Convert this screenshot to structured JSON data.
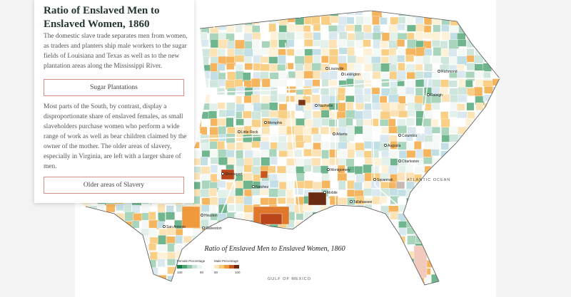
{
  "panel": {
    "title": "Ratio of Enslaved Men to Enslaved Women, 1860",
    "paragraph_1": "The domestic slave trade separates men from women, as traders and planters ship male workers to the sugar fields of Louisiana and Texas as well as to the new plantation areas along the Mississippi River.",
    "button_1": "Sugar Plantations",
    "paragraph_2": "Most parts of the South, by contrast, display a disproportionate share of enslaved females, as small slaveholders purchase women who perform a wide range of work as well as bear children claimed by the owner of the mother. The older areas of slavery, especially in Virginia, are left with a larger share of men.",
    "button_2": "Older areas of Slavery"
  },
  "map": {
    "title": "Ratio of Enslaved Men to Enslaved Women, 1860",
    "ocean_labels": [
      "ATLANTIC OCEAN",
      "GULF OF MEXICO"
    ],
    "cities": [
      "Louisville",
      "Lexington",
      "Richmond",
      "Raleigh",
      "Memphis",
      "Nashville",
      "Little Rock",
      "Charleston",
      "Savannah",
      "Augusta",
      "Atlanta",
      "Montgomery",
      "Mobile",
      "Natchez",
      "Shreveport",
      "Houston",
      "Galveston",
      "San Antonio",
      "Columbia",
      "Tallahassee"
    ],
    "legend": {
      "female_title": "Female Percentage",
      "female_ticks": [
        "100",
        "50"
      ],
      "male_title": "Male Percentage",
      "male_ticks": [
        "50",
        "100"
      ]
    }
  }
}
